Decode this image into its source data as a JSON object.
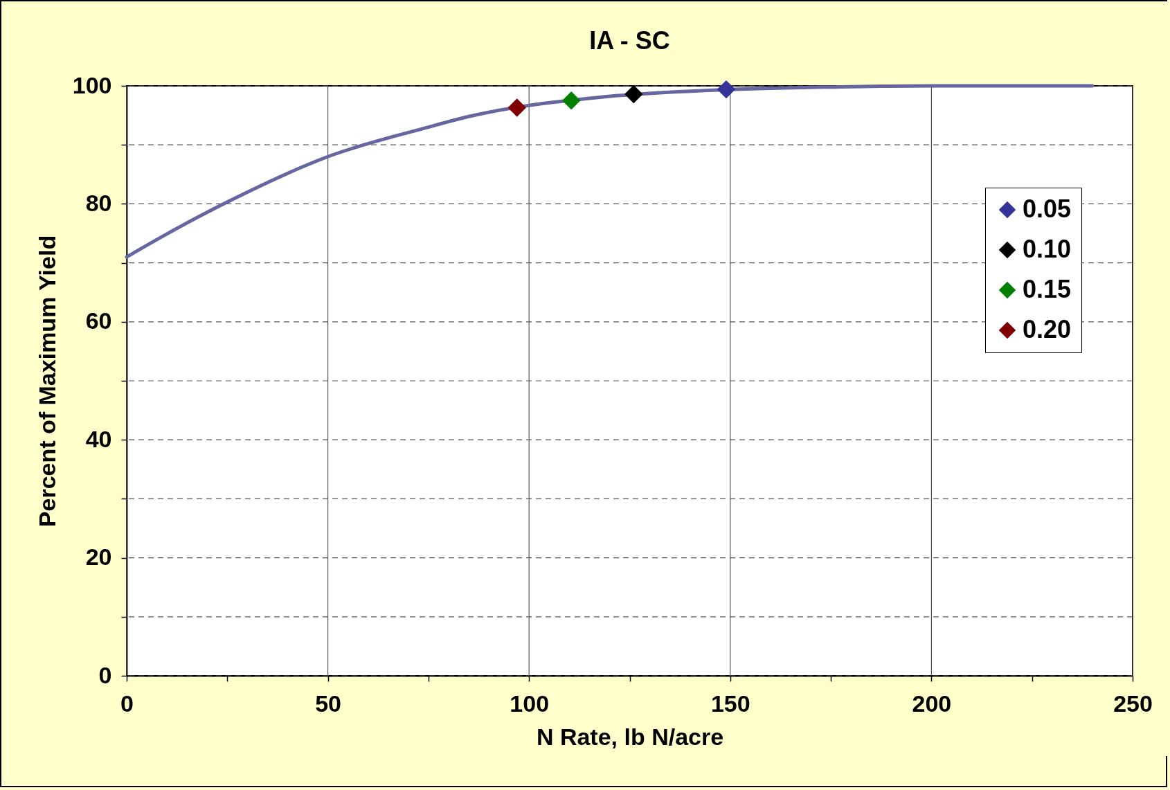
{
  "chart_data": {
    "type": "line",
    "title": "IA - SC",
    "xlabel": "N Rate, lb N/acre",
    "ylabel": "Percent of Maximum Yield",
    "xlim": [
      0,
      250
    ],
    "ylim": [
      0,
      100
    ],
    "xticks": [
      0,
      {
        "value": 25,
        "label": null
      },
      50,
      {
        "value": 75,
        "label": null
      },
      100,
      {
        "value": 125,
        "label": null
      },
      150,
      {
        "value": 175,
        "label": null
      },
      200,
      {
        "value": 225,
        "label": null
      },
      250
    ],
    "yticks": [
      0,
      {
        "value": 10,
        "label": null
      },
      20,
      {
        "value": 30,
        "label": null
      },
      40,
      {
        "value": 50,
        "label": null
      },
      60,
      {
        "value": 70,
        "label": null
      },
      80,
      {
        "value": 90,
        "label": null
      },
      100
    ],
    "grid": true,
    "legend": "right",
    "marker": "diamond",
    "series": [
      {
        "type": "line",
        "marker": "none",
        "color": "#6666a0",
        "x": [
          0,
          10,
          25,
          50,
          75,
          85,
          118,
          137,
          160,
          175,
          200,
          240
        ],
        "values": [
          71,
          74.9,
          80.3,
          88,
          93,
          94.8,
          98.1,
          99,
          99.6,
          99.8,
          100,
          100
        ]
      },
      {
        "type": "scatter",
        "name": "0.05",
        "color": "#333399",
        "x": [
          149
        ],
        "values": [
          99.4
        ]
      },
      {
        "type": "scatter",
        "name": "0.10",
        "color": "#000000",
        "x": [
          126
        ],
        "values": [
          98.6
        ]
      },
      {
        "type": "scatter",
        "name": "0.15",
        "color": "#008000",
        "x": [
          110.5
        ],
        "values": [
          97.5
        ]
      },
      {
        "type": "scatter",
        "name": "0.20",
        "color": "#800000",
        "x": [
          97
        ],
        "values": [
          96.3
        ]
      }
    ]
  }
}
